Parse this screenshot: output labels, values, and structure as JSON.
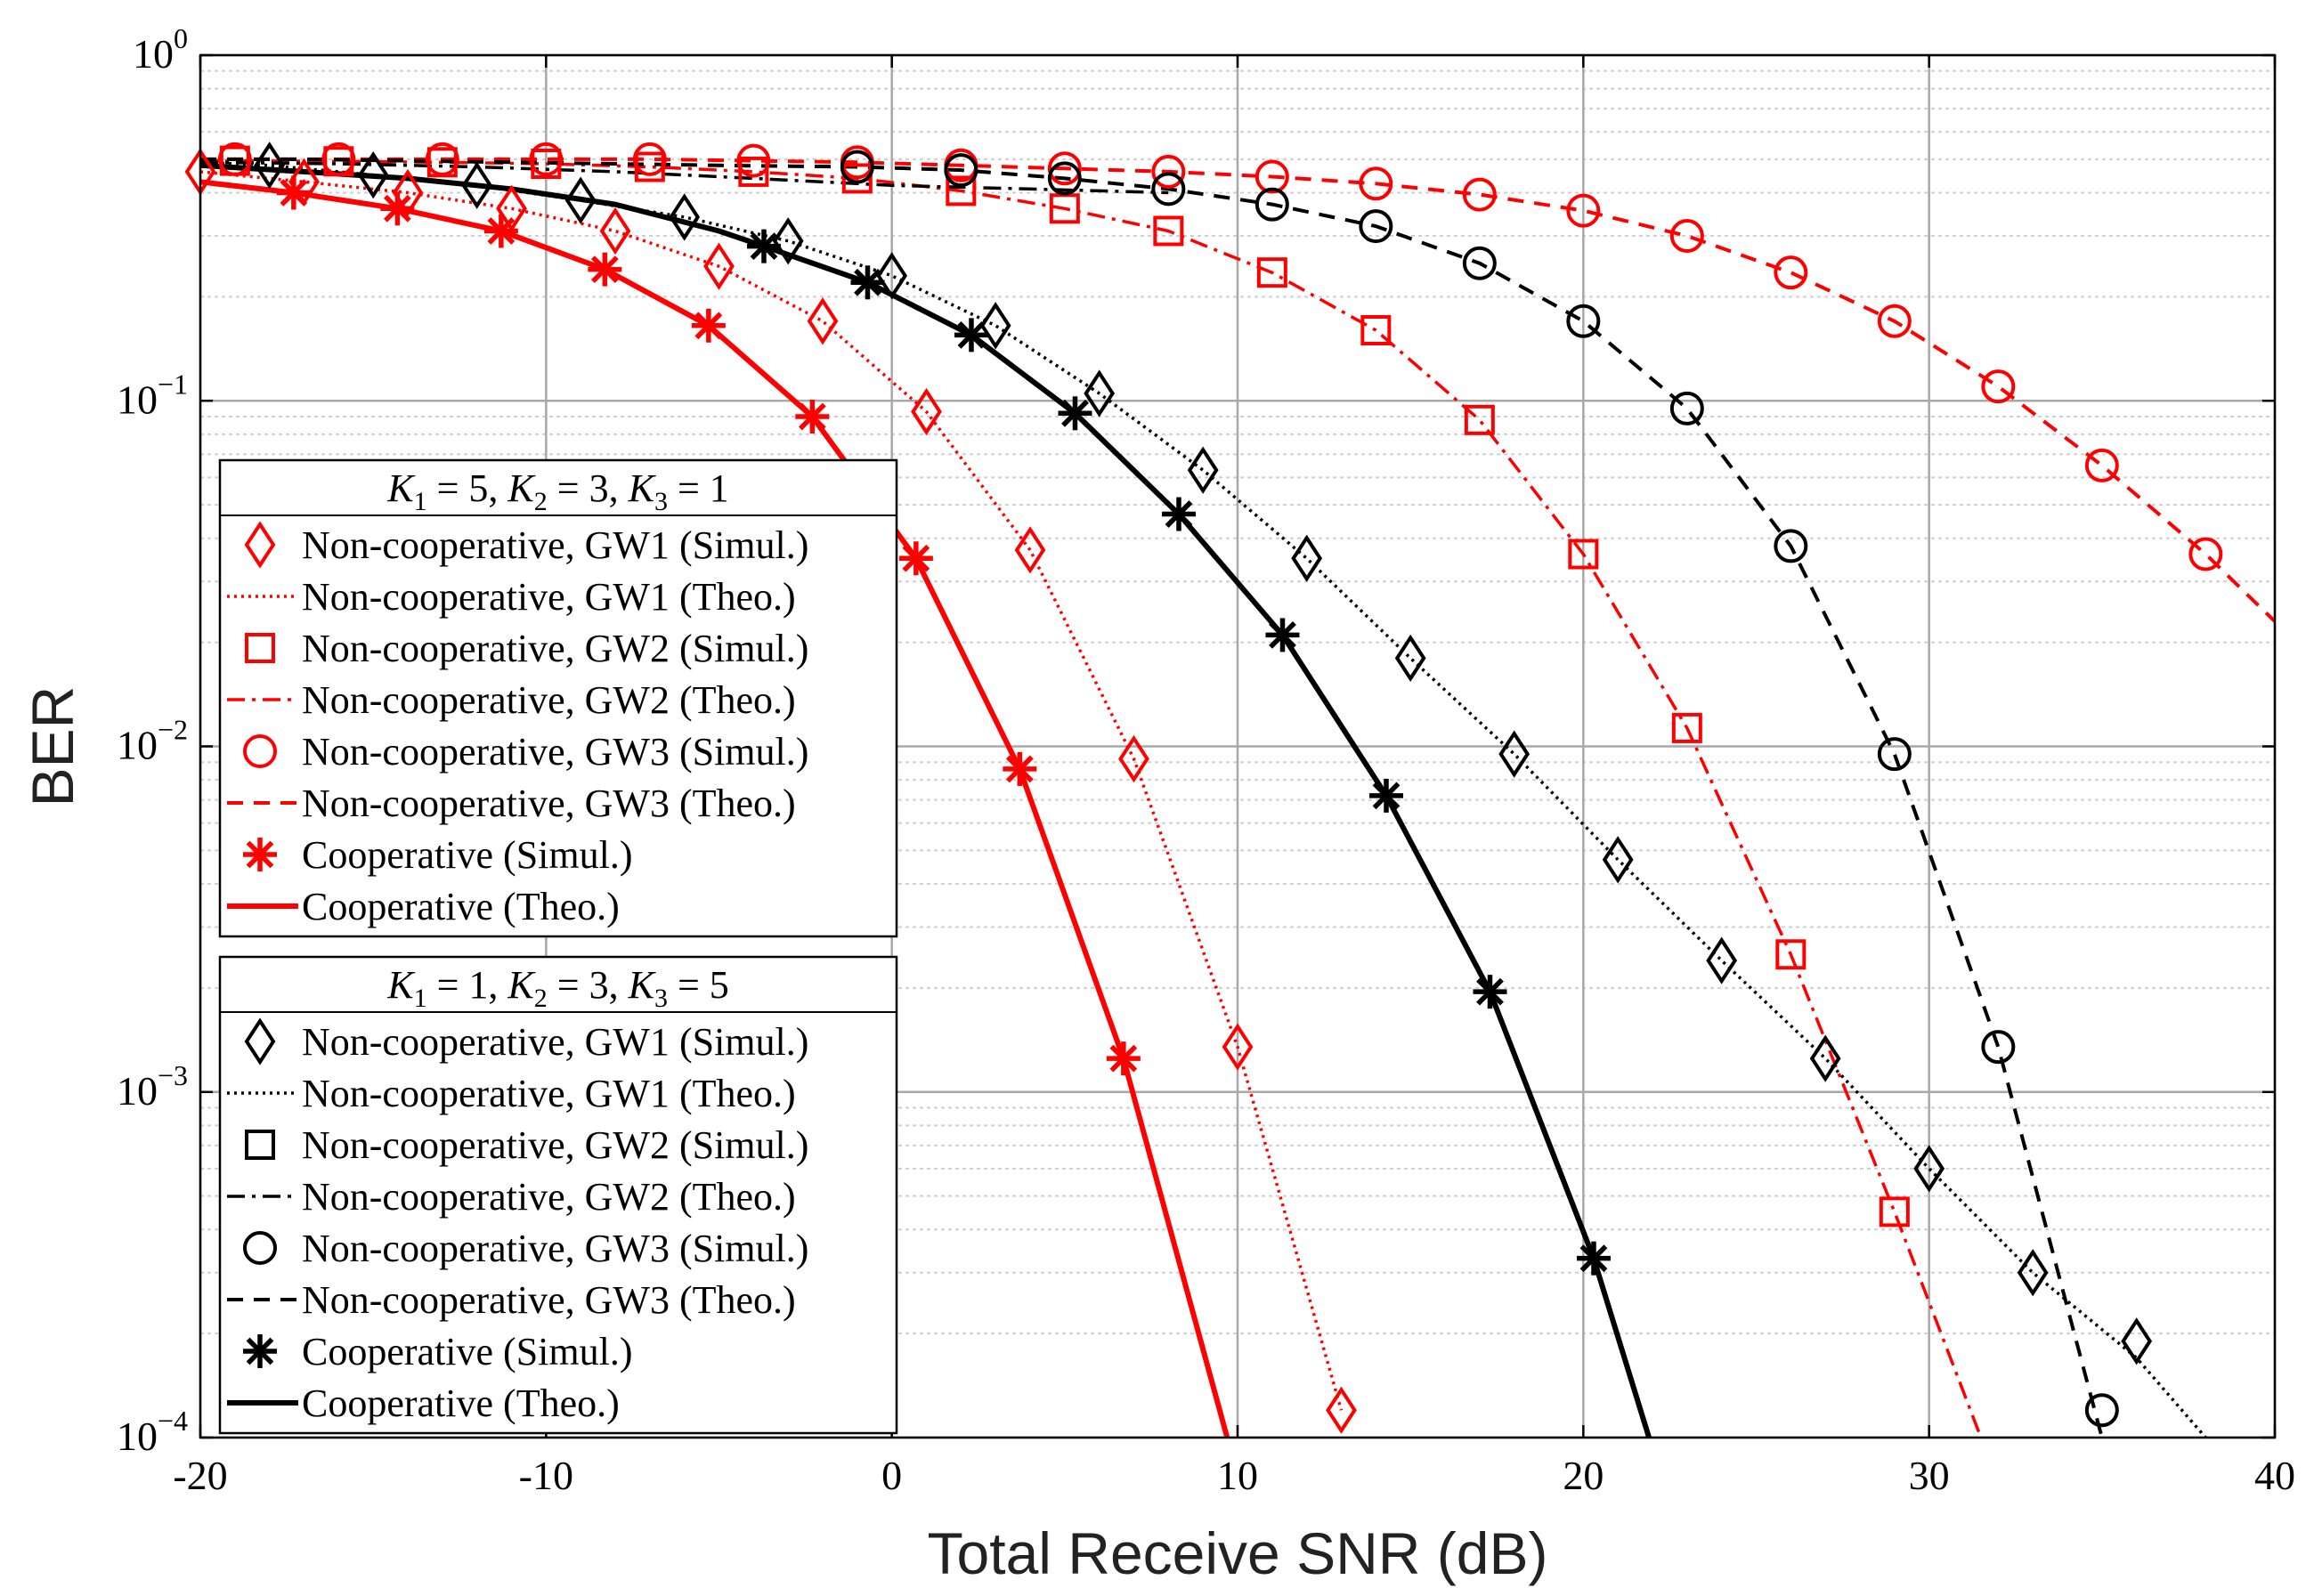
{
  "chart_data": {
    "type": "line",
    "yscale": "log",
    "xlabel": "Total Receive SNR (dB)",
    "ylabel": "BER",
    "xlim": [
      -20,
      40
    ],
    "ylim": [
      0.0001,
      1
    ],
    "grid": true,
    "x_ticks": [
      -20,
      -10,
      0,
      10,
      20,
      30,
      40
    ],
    "x_tick_labels": [
      "-20",
      "-10",
      "0",
      "10",
      "20",
      "30",
      "40"
    ],
    "y_ticks": [
      0.0001,
      0.001,
      0.01,
      0.1,
      1
    ],
    "y_tick_labels": [
      {
        "base": "10",
        "exp": "−4"
      },
      {
        "base": "10",
        "exp": "−3"
      },
      {
        "base": "10",
        "exp": "−2"
      },
      {
        "base": "10",
        "exp": "−1"
      },
      {
        "base": "10",
        "exp": "0"
      }
    ],
    "colors": {
      "red": "#ff0000",
      "black": "#000000",
      "grid_major": "#a8a8a8",
      "grid_minor": "#cfcfcf"
    },
    "series": [
      {
        "name": "Non-cooperative, GW1 (Simul.)",
        "group": 1,
        "color": "#ff0000",
        "kind": "marker",
        "marker": "diamond",
        "x": [
          -20,
          -17,
          -14,
          -11,
          -8,
          -5,
          -2,
          1,
          4,
          7,
          10,
          13
        ],
        "y": [
          0.46,
          0.43,
          0.4,
          0.36,
          0.31,
          0.245,
          0.17,
          0.093,
          0.037,
          0.0092,
          0.00135,
          0.00012
        ]
      },
      {
        "name": "Non-cooperative, GW1 (Theo.)",
        "group": 1,
        "color": "#ff0000",
        "kind": "line",
        "dash": "dot",
        "x": [
          -20,
          -17,
          -14,
          -11,
          -8,
          -5,
          -2,
          1,
          4,
          7,
          10,
          13
        ],
        "y": [
          0.46,
          0.43,
          0.4,
          0.36,
          0.31,
          0.245,
          0.17,
          0.093,
          0.037,
          0.0092,
          0.00135,
          0.00012
        ]
      },
      {
        "name": "Non-cooperative, GW2 (Simul.)",
        "group": 1,
        "color": "#ff0000",
        "kind": "marker",
        "marker": "square",
        "x": [
          -19,
          -16,
          -13,
          -10,
          -7,
          -4,
          -1,
          2,
          5,
          8,
          11,
          14,
          17,
          20,
          23,
          26,
          29
        ],
        "y": [
          0.495,
          0.493,
          0.49,
          0.485,
          0.475,
          0.46,
          0.44,
          0.405,
          0.36,
          0.31,
          0.235,
          0.16,
          0.088,
          0.036,
          0.0113,
          0.0025,
          0.00045
        ]
      },
      {
        "name": "Non-cooperative, GW2 (Theo.)",
        "group": 1,
        "color": "#ff0000",
        "kind": "line",
        "dash": "dashdot",
        "x": [
          -20,
          -19,
          -16,
          -13,
          -10,
          -7,
          -4,
          -1,
          2,
          5,
          8,
          11,
          14,
          17,
          20,
          23,
          26,
          29,
          31.5
        ],
        "y": [
          0.497,
          0.495,
          0.493,
          0.49,
          0.485,
          0.475,
          0.46,
          0.44,
          0.405,
          0.36,
          0.31,
          0.235,
          0.16,
          0.088,
          0.036,
          0.0113,
          0.0025,
          0.00045,
          0.0001
        ]
      },
      {
        "name": "Non-cooperative, GW3 (Simul.)",
        "group": 1,
        "color": "#ff0000",
        "kind": "marker",
        "marker": "circle",
        "x": [
          -19,
          -16,
          -13,
          -10,
          -7,
          -4,
          -1,
          2,
          5,
          8,
          11,
          14,
          17,
          20,
          23,
          26,
          29,
          32,
          35,
          38
        ],
        "y": [
          0.5,
          0.5,
          0.5,
          0.5,
          0.5,
          0.495,
          0.49,
          0.48,
          0.47,
          0.46,
          0.445,
          0.425,
          0.395,
          0.355,
          0.3,
          0.235,
          0.17,
          0.11,
          0.065,
          0.036
        ]
      },
      {
        "name": "Non-cooperative, GW3 (Theo.)",
        "group": 1,
        "color": "#ff0000",
        "kind": "line",
        "dash": "dash",
        "x": [
          -20,
          -19,
          -16,
          -13,
          -10,
          -7,
          -4,
          -1,
          2,
          5,
          8,
          11,
          14,
          17,
          20,
          23,
          26,
          29,
          32,
          35,
          38,
          40
        ],
        "y": [
          0.5,
          0.5,
          0.5,
          0.5,
          0.5,
          0.5,
          0.495,
          0.49,
          0.48,
          0.47,
          0.46,
          0.445,
          0.425,
          0.395,
          0.355,
          0.3,
          0.235,
          0.17,
          0.11,
          0.065,
          0.036,
          0.023
        ]
      },
      {
        "name": "Cooperative (Simul.)",
        "group": 1,
        "color": "#ff0000",
        "kind": "marker",
        "marker": "asterisk",
        "x": [
          -17.3,
          -14.3,
          -11.3,
          -8.3,
          -5.3,
          -2.3,
          0.7,
          3.7,
          6.7
        ],
        "y": [
          0.4,
          0.36,
          0.31,
          0.24,
          0.165,
          0.09,
          0.035,
          0.0086,
          0.00125
        ]
      },
      {
        "name": "Cooperative (Theo.)",
        "group": 1,
        "color": "#ff0000",
        "kind": "line",
        "dash": "solid",
        "x": [
          -20,
          -17.3,
          -14.3,
          -11.3,
          -8.3,
          -5.3,
          -2.3,
          0.7,
          3.7,
          6.7,
          9.7
        ],
        "y": [
          0.43,
          0.4,
          0.36,
          0.31,
          0.24,
          0.165,
          0.09,
          0.035,
          0.0086,
          0.00125,
          0.0001
        ]
      },
      {
        "name": "Non-cooperative, GW1 (Simul.)",
        "group": 2,
        "color": "#000000",
        "kind": "marker",
        "marker": "diamond",
        "x": [
          -18,
          -15,
          -12,
          -9,
          -6,
          -3,
          0,
          3,
          6,
          9,
          12,
          15,
          18,
          21,
          24,
          27,
          30,
          33,
          36
        ],
        "y": [
          0.48,
          0.45,
          0.42,
          0.38,
          0.34,
          0.29,
          0.23,
          0.165,
          0.105,
          0.063,
          0.035,
          0.018,
          0.0095,
          0.0047,
          0.0024,
          0.00125,
          0.0006,
          0.0003,
          0.00019
        ]
      },
      {
        "name": "Non-cooperative, GW1 (Theo.)",
        "group": 2,
        "color": "#000000",
        "kind": "line",
        "dash": "dot",
        "x": [
          -20,
          -18,
          -15,
          -12,
          -9,
          -6,
          -3,
          0,
          3,
          6,
          9,
          12,
          15,
          18,
          21,
          24,
          27,
          30,
          33,
          36,
          38
        ],
        "y": [
          0.49,
          0.48,
          0.45,
          0.42,
          0.38,
          0.34,
          0.29,
          0.23,
          0.165,
          0.105,
          0.063,
          0.035,
          0.018,
          0.0095,
          0.0047,
          0.0024,
          0.00125,
          0.0006,
          0.0003,
          0.00017,
          0.0001
        ]
      },
      {
        "name": "Non-cooperative, GW2 (Simul.)",
        "group": 2,
        "color": "#000000",
        "kind": "marker",
        "marker": "square",
        "x": [],
        "y": []
      },
      {
        "name": "Non-cooperative, GW2 (Theo.)",
        "group": 2,
        "color": "#000000",
        "kind": "line",
        "dash": "dashdot",
        "x": [
          -20,
          -16,
          -12,
          -8,
          -4,
          0,
          4,
          8
        ],
        "y": [
          0.49,
          0.485,
          0.475,
          0.46,
          0.44,
          0.42,
          0.41,
          0.4
        ]
      },
      {
        "name": "Non-cooperative, GW3 (Simul.)",
        "group": 2,
        "color": "#000000",
        "kind": "marker",
        "marker": "circle",
        "x": [
          -1,
          2,
          5,
          8,
          11,
          14,
          17,
          20,
          23,
          26,
          29,
          32,
          35
        ],
        "y": [
          0.475,
          0.465,
          0.44,
          0.41,
          0.37,
          0.32,
          0.25,
          0.17,
          0.095,
          0.038,
          0.0095,
          0.00135,
          0.00012
        ]
      },
      {
        "name": "Non-cooperative, GW3 (Theo.)",
        "group": 2,
        "color": "#000000",
        "kind": "line",
        "dash": "dash",
        "x": [
          -20,
          -17,
          -14,
          -11,
          -8,
          -5,
          -1,
          2,
          5,
          8,
          11,
          14,
          17,
          20,
          23,
          26,
          29,
          32,
          35
        ],
        "y": [
          0.5,
          0.5,
          0.495,
          0.49,
          0.485,
          0.48,
          0.475,
          0.465,
          0.44,
          0.41,
          0.37,
          0.32,
          0.25,
          0.17,
          0.095,
          0.038,
          0.0095,
          0.00135,
          0.0001
        ]
      },
      {
        "name": "Cooperative (Simul.)",
        "group": 2,
        "color": "#000000",
        "kind": "marker",
        "marker": "asterisk",
        "x": [
          -3.7,
          -0.7,
          2.3,
          5.3,
          8.3,
          11.3,
          14.3,
          17.3,
          20.3
        ],
        "y": [
          0.28,
          0.22,
          0.155,
          0.092,
          0.047,
          0.021,
          0.0072,
          0.00195,
          0.00033
        ]
      },
      {
        "name": "Cooperative (Theo.)",
        "group": 2,
        "color": "#000000",
        "kind": "line",
        "dash": "solid",
        "x": [
          -20,
          -17,
          -14,
          -11,
          -8,
          -5,
          -3.7,
          -0.7,
          2.3,
          5.3,
          8.3,
          11.3,
          14.3,
          17.3,
          20.3,
          21.9
        ],
        "y": [
          0.48,
          0.46,
          0.44,
          0.41,
          0.37,
          0.31,
          0.28,
          0.22,
          0.155,
          0.092,
          0.047,
          0.021,
          0.0072,
          0.00195,
          0.00033,
          0.0001
        ]
      }
    ],
    "legend": [
      {
        "title_parts": [
          {
            "t": "K",
            "sub": "1",
            "rest": " = 5, "
          },
          {
            "t": "K",
            "sub": "2",
            "rest": " = 3, "
          },
          {
            "t": "K",
            "sub": "3",
            "rest": " = 1"
          }
        ],
        "placement": "middle-left",
        "color": "#ff0000",
        "entries": [
          "Non-cooperative, GW1 (Simul.)",
          "Non-cooperative, GW1 (Theo.)",
          "Non-cooperative, GW2 (Simul.)",
          "Non-cooperative, GW2 (Theo.)",
          "Non-cooperative, GW3 (Simul.)",
          "Non-cooperative, GW3 (Theo.)",
          "Cooperative (Simul.)",
          "Cooperative (Theo.)"
        ]
      },
      {
        "title_parts": [
          {
            "t": "K",
            "sub": "1",
            "rest": " = 1, "
          },
          {
            "t": "K",
            "sub": "2",
            "rest": " = 3, "
          },
          {
            "t": "K",
            "sub": "3",
            "rest": " = 5"
          }
        ],
        "placement": "bottom-left",
        "color": "#000000",
        "entries": [
          "Non-cooperative, GW1 (Simul.)",
          "Non-cooperative, GW1 (Theo.)",
          "Non-cooperative, GW2 (Simul.)",
          "Non-cooperative, GW2 (Theo.)",
          "Non-cooperative, GW3 (Simul.)",
          "Non-cooperative, GW3 (Theo.)",
          "Cooperative (Simul.)",
          "Cooperative (Theo.)"
        ]
      }
    ]
  }
}
